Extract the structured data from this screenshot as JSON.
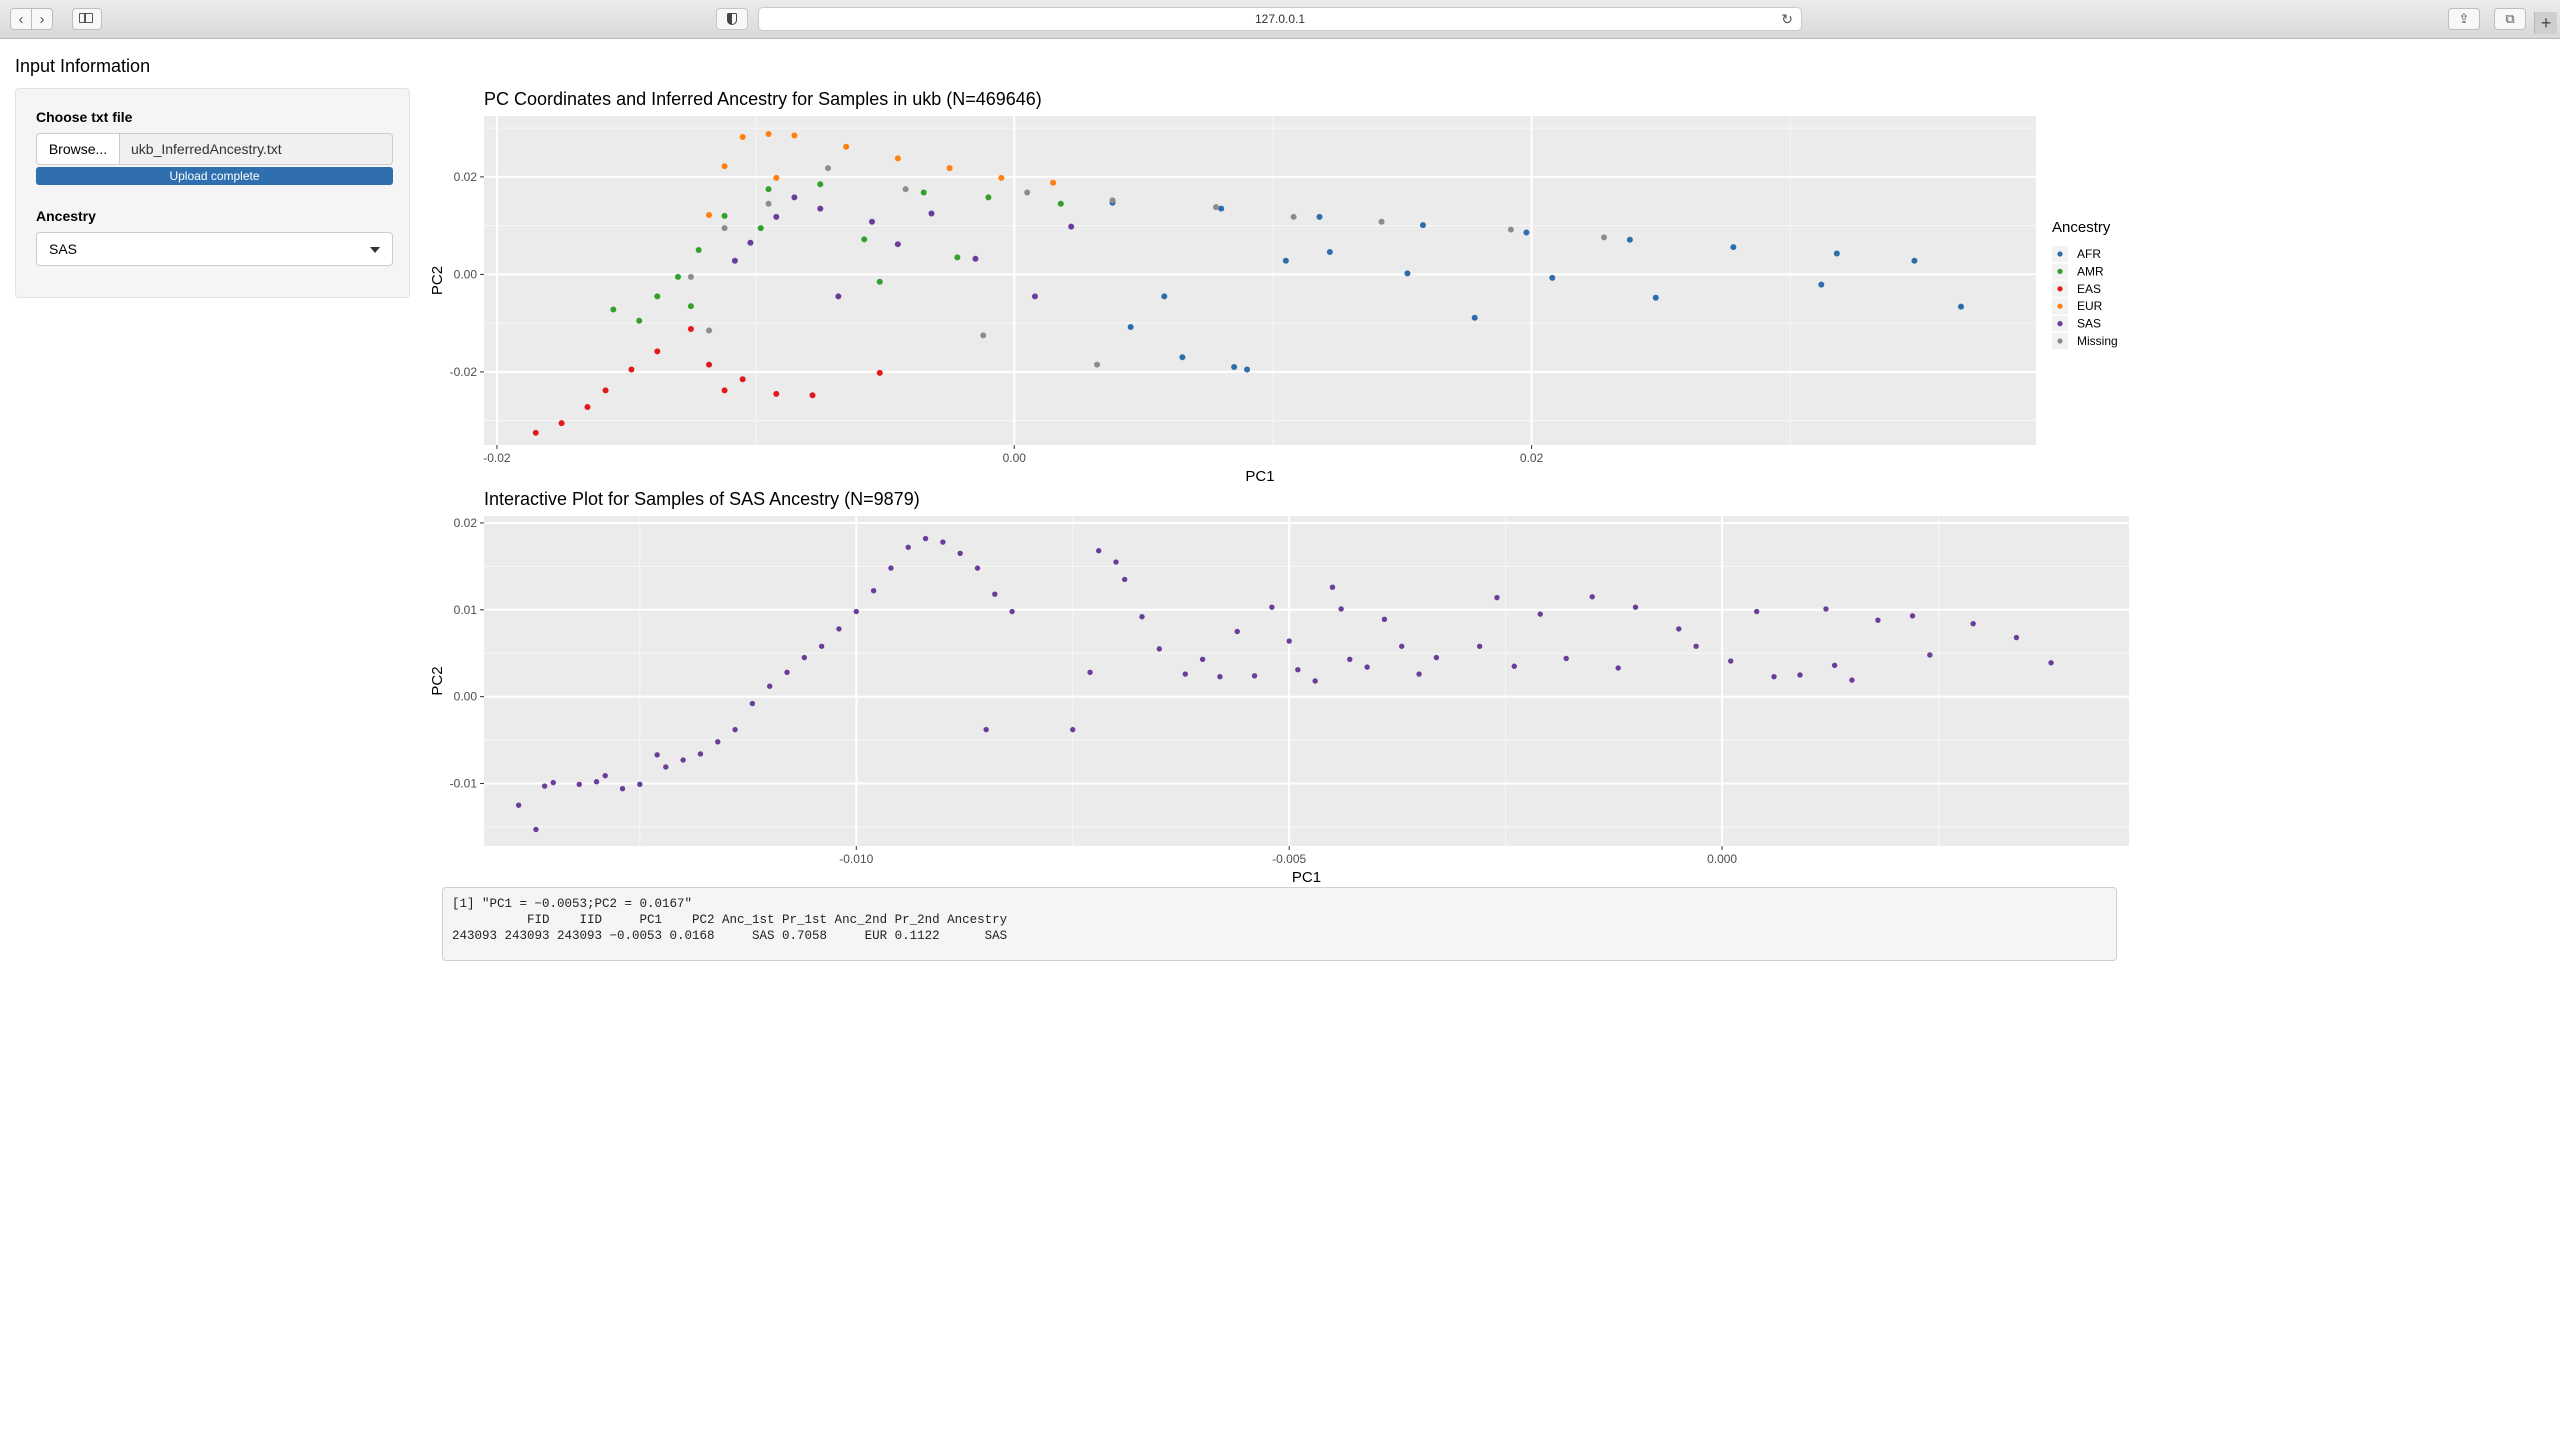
{
  "browser": {
    "url": "127.0.0.1",
    "icons": [
      "back-arrow-icon",
      "forward-arrow-icon",
      "sidebar-icon",
      "shield-icon",
      "reload-icon",
      "share-icon",
      "tabs-icon",
      "plus-icon"
    ]
  },
  "sidebar": {
    "title": "Input Information",
    "file_label": "Choose txt file",
    "browse_label": "Browse...",
    "file_name": "ukb_InferredAncestry.txt",
    "upload_status": "Upload complete",
    "upload_progress": 1.0,
    "ancestry_label": "Ancestry",
    "ancestry_value": "SAS"
  },
  "colors": {
    "AFR": "#2e6dab",
    "AMR": "#33a02c",
    "EAS": "#e31a1c",
    "EUR": "#ff7f0e",
    "SAS": "#6a3d9a",
    "Missing": "#8c8c8c",
    "panel_bg": "#ebebeb",
    "accent": "#2f6faf"
  },
  "chart_data": [
    {
      "type": "scatter",
      "title": "PC Coordinates and Inferred Ancestry for Samples in ukb (N=469646)",
      "xlabel": "PC1",
      "ylabel": "PC2",
      "xlim": [
        -0.0205,
        0.0395
      ],
      "ylim": [
        -0.035,
        0.0325
      ],
      "xticks": [
        -0.02,
        0.0,
        0.02
      ],
      "xtick_labels": [
        "-0.02",
        "0.00",
        "0.02"
      ],
      "yticks": [
        0.02,
        0.0,
        -0.02
      ],
      "ytick_labels": [
        "0.02",
        "0.00",
        "-0.02"
      ],
      "grid": true,
      "legend_title": "Ancestry",
      "legend_position": "right",
      "legend": [
        "AFR",
        "AMR",
        "EAS",
        "EUR",
        "SAS",
        "Missing"
      ],
      "series": [
        {
          "name": "AFR",
          "points": [
            [
              0.0038,
              0.0147
            ],
            [
              0.008,
              0.0135
            ],
            [
              0.0118,
              0.0118
            ],
            [
              0.0158,
              0.0101
            ],
            [
              0.0198,
              0.0086
            ],
            [
              0.0238,
              0.0071
            ],
            [
              0.0278,
              0.0056
            ],
            [
              0.0318,
              0.0043
            ],
            [
              0.0348,
              0.0028
            ],
            [
              0.0366,
              -0.0066
            ],
            [
              0.009,
              -0.0195
            ],
            [
              0.0085,
              -0.019
            ],
            [
              0.0065,
              -0.017
            ],
            [
              0.0045,
              -0.0108
            ],
            [
              0.0105,
              0.0028
            ],
            [
              0.0122,
              0.0046
            ],
            [
              0.0152,
              0.0002
            ],
            [
              0.0208,
              -0.0007
            ],
            [
              0.0248,
              -0.0048
            ],
            [
              0.0312,
              -0.0021
            ],
            [
              0.0178,
              -0.0089
            ],
            [
              0.0058,
              -0.0045
            ]
          ]
        },
        {
          "name": "AMR",
          "points": [
            [
              -0.0145,
              -0.0095
            ],
            [
              -0.0138,
              -0.0045
            ],
            [
              -0.013,
              -0.0005
            ],
            [
              -0.0122,
              0.005
            ],
            [
              -0.0112,
              0.012
            ],
            [
              -0.0095,
              0.0175
            ],
            [
              -0.0075,
              0.0185
            ],
            [
              -0.0035,
              0.0168
            ],
            [
              -0.001,
              0.0158
            ],
            [
              0.0018,
              0.0145
            ],
            [
              -0.0058,
              0.0072
            ],
            [
              -0.0052,
              -0.0015
            ],
            [
              -0.0022,
              0.0035
            ],
            [
              -0.0125,
              -0.0065
            ],
            [
              -0.0155,
              -0.0072
            ],
            [
              -0.0098,
              0.0095
            ]
          ]
        },
        {
          "name": "EAS",
          "points": [
            [
              -0.0185,
              -0.0325
            ],
            [
              -0.0175,
              -0.0305
            ],
            [
              -0.0165,
              -0.0272
            ],
            [
              -0.0158,
              -0.0238
            ],
            [
              -0.0148,
              -0.0195
            ],
            [
              -0.0138,
              -0.0158
            ],
            [
              -0.0125,
              -0.0112
            ],
            [
              -0.0118,
              -0.0185
            ],
            [
              -0.0092,
              -0.0245
            ],
            [
              -0.0078,
              -0.0248
            ],
            [
              -0.0052,
              -0.0202
            ],
            [
              -0.0105,
              -0.0215
            ],
            [
              -0.0112,
              -0.0238
            ]
          ]
        },
        {
          "name": "EUR",
          "points": [
            [
              -0.0105,
              0.0282
            ],
            [
              -0.0095,
              0.0288
            ],
            [
              -0.0085,
              0.0285
            ],
            [
              -0.0065,
              0.0262
            ],
            [
              -0.0045,
              0.0238
            ],
            [
              -0.0025,
              0.0218
            ],
            [
              -0.0005,
              0.0198
            ],
            [
              0.0015,
              0.0188
            ],
            [
              -0.0112,
              0.0222
            ],
            [
              -0.0118,
              0.0122
            ],
            [
              -0.0092,
              0.0198
            ]
          ]
        },
        {
          "name": "SAS",
          "points": [
            [
              -0.0108,
              0.0028
            ],
            [
              -0.0102,
              0.0065
            ],
            [
              -0.0092,
              0.0118
            ],
            [
              -0.0085,
              0.0158
            ],
            [
              -0.0075,
              0.0135
            ],
            [
              -0.0045,
              0.0062
            ],
            [
              -0.0015,
              0.0032
            ],
            [
              0.0008,
              -0.0045
            ],
            [
              -0.0068,
              -0.0045
            ],
            [
              -0.0055,
              0.0108
            ],
            [
              -0.0032,
              0.0125
            ],
            [
              0.0022,
              0.0098
            ]
          ]
        },
        {
          "name": "Missing",
          "points": [
            [
              -0.0125,
              -0.0005
            ],
            [
              -0.0112,
              0.0095
            ],
            [
              -0.0095,
              0.0145
            ],
            [
              -0.0072,
              0.0218
            ],
            [
              -0.0042,
              0.0175
            ],
            [
              0.0005,
              0.0168
            ],
            [
              0.0038,
              0.0152
            ],
            [
              0.0078,
              0.0138
            ],
            [
              0.0108,
              0.0118
            ],
            [
              0.0142,
              0.0108
            ],
            [
              0.0192,
              0.0092
            ],
            [
              0.0228,
              0.0076
            ],
            [
              0.0032,
              -0.0185
            ],
            [
              -0.0118,
              -0.0115
            ],
            [
              -0.0012,
              -0.0125
            ]
          ]
        }
      ]
    },
    {
      "type": "scatter",
      "title": "Interactive Plot for Samples of SAS Ancestry (N=9879)",
      "xlabel": "PC1",
      "ylabel": "PC2",
      "xlim": [
        -0.0143,
        0.0047
      ],
      "ylim": [
        -0.0172,
        0.0208
      ],
      "xticks": [
        -0.01,
        -0.005,
        0.0
      ],
      "xtick_labels": [
        "-0.010",
        "-0.005",
        "0.000"
      ],
      "yticks": [
        0.02,
        0.01,
        0.0,
        -0.01
      ],
      "ytick_labels": [
        "0.02",
        "0.01",
        "0.00",
        "-0.01"
      ],
      "grid": true,
      "series": [
        {
          "name": "SAS",
          "points": [
            [
              -0.0139,
              -0.0125
            ],
            [
              -0.0137,
              -0.0153
            ],
            [
              -0.0136,
              -0.0103
            ],
            [
              -0.0135,
              -0.0099
            ],
            [
              -0.0132,
              -0.0101
            ],
            [
              -0.013,
              -0.0098
            ],
            [
              -0.0129,
              -0.0091
            ],
            [
              -0.0127,
              -0.0106
            ],
            [
              -0.0125,
              -0.0101
            ],
            [
              -0.0123,
              -0.0067
            ],
            [
              -0.0122,
              -0.0081
            ],
            [
              -0.012,
              -0.0073
            ],
            [
              -0.0118,
              -0.0066
            ],
            [
              -0.0116,
              -0.0052
            ],
            [
              -0.0114,
              -0.0038
            ],
            [
              -0.0112,
              -0.0008
            ],
            [
              -0.011,
              0.0012
            ],
            [
              -0.0108,
              0.0028
            ],
            [
              -0.0106,
              0.0045
            ],
            [
              -0.0104,
              0.0058
            ],
            [
              -0.0102,
              0.0078
            ],
            [
              -0.01,
              0.0098
            ],
            [
              -0.0098,
              0.0122
            ],
            [
              -0.0096,
              0.0148
            ],
            [
              -0.0094,
              0.0172
            ],
            [
              -0.0092,
              0.0182
            ],
            [
              -0.009,
              0.0178
            ],
            [
              -0.0088,
              0.0165
            ],
            [
              -0.0086,
              0.0148
            ],
            [
              -0.0084,
              0.0118
            ],
            [
              -0.0082,
              0.0098
            ],
            [
              -0.0085,
              -0.0038
            ],
            [
              -0.0075,
              -0.0038
            ],
            [
              -0.0073,
              0.0028
            ],
            [
              -0.0072,
              0.0168
            ],
            [
              -0.007,
              0.0155
            ],
            [
              -0.0069,
              0.0135
            ],
            [
              -0.0067,
              0.0092
            ],
            [
              -0.0065,
              0.0055
            ],
            [
              -0.0062,
              0.0026
            ],
            [
              -0.006,
              0.0043
            ],
            [
              -0.0058,
              0.0023
            ],
            [
              -0.0056,
              0.0075
            ],
            [
              -0.0054,
              0.0024
            ],
            [
              -0.0052,
              0.0103
            ],
            [
              -0.005,
              0.0064
            ],
            [
              -0.0049,
              0.0031
            ],
            [
              -0.0047,
              0.0018
            ],
            [
              -0.0045,
              0.0126
            ],
            [
              -0.0044,
              0.0101
            ],
            [
              -0.0043,
              0.0043
            ],
            [
              -0.0041,
              0.0034
            ],
            [
              -0.0039,
              0.0089
            ],
            [
              -0.0037,
              0.0058
            ],
            [
              -0.0035,
              0.0026
            ],
            [
              -0.0033,
              0.0045
            ],
            [
              -0.0028,
              0.0058
            ],
            [
              -0.0026,
              0.0114
            ],
            [
              -0.0024,
              0.0035
            ],
            [
              -0.0021,
              0.0095
            ],
            [
              -0.0018,
              0.0044
            ],
            [
              -0.0015,
              0.0115
            ],
            [
              -0.0012,
              0.0033
            ],
            [
              -0.001,
              0.0103
            ],
            [
              -0.0005,
              0.0078
            ],
            [
              -0.0003,
              0.0058
            ],
            [
              0.0001,
              0.0041
            ],
            [
              0.0004,
              0.0098
            ],
            [
              0.0006,
              0.0023
            ],
            [
              0.0009,
              0.0025
            ],
            [
              0.0012,
              0.0101
            ],
            [
              0.0013,
              0.0036
            ],
            [
              0.0015,
              0.0019
            ],
            [
              0.0018,
              0.0088
            ],
            [
              0.0022,
              0.0093
            ],
            [
              0.0024,
              0.0048
            ],
            [
              0.0029,
              0.0084
            ],
            [
              0.0034,
              0.0068
            ],
            [
              0.0038,
              0.0039
            ]
          ]
        }
      ]
    }
  ],
  "output": {
    "line1": "[1] \"PC1 = −0.0053;PC2 = 0.0167\"",
    "line2": "          FID    IID     PC1    PC2 Anc_1st Pr_1st Anc_2nd Pr_2nd Ancestry",
    "line3": "243093 243093 243093 −0.0053 0.0168     SAS 0.7058     EUR 0.1122      SAS"
  }
}
